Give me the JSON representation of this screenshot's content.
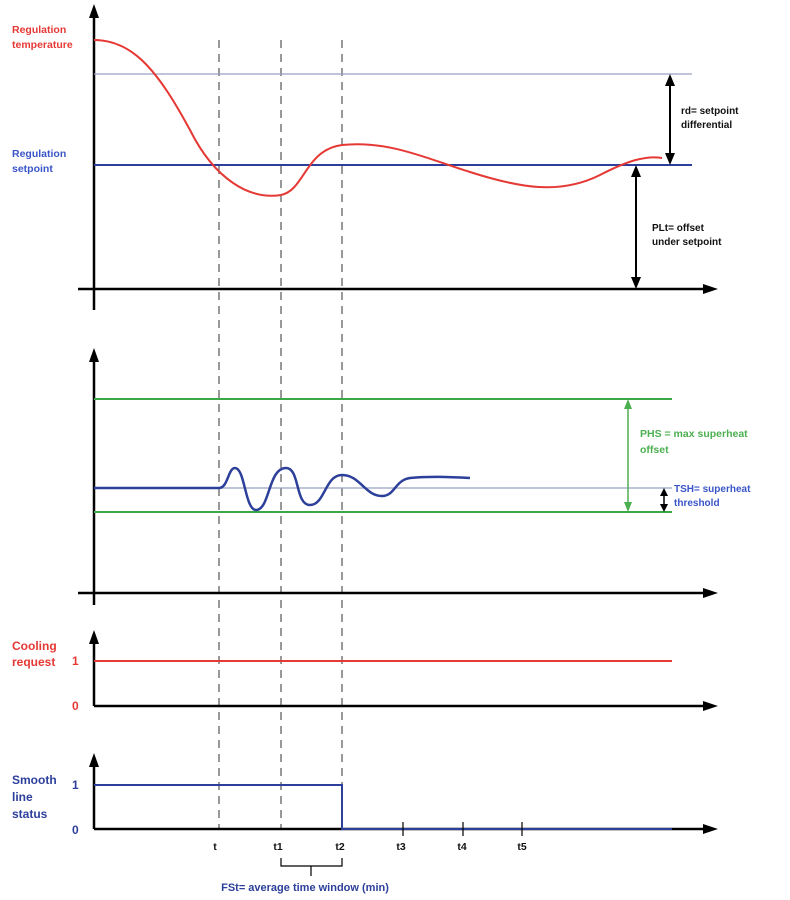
{
  "colors": {
    "axis": "#000000",
    "red": "#e53935",
    "blue": "#2c3f9a",
    "green": "#3aa844",
    "label_blue": "#3a55c8",
    "label_red": "#e53935",
    "label_green": "#4caf50",
    "thin_line": "#9aa0c0",
    "dash": "#555555"
  },
  "panel1": {
    "label_temperature": [
      "Regulation",
      "temperature"
    ],
    "label_setpoint": [
      "Regulation",
      "setpoint"
    ],
    "rd_label": [
      "rd= setpoint",
      "differential"
    ],
    "plt_label": [
      "PLt= offset",
      "under setpoint"
    ]
  },
  "panel2": {
    "phs_label": [
      "PHS = max superheat",
      "offset"
    ],
    "tsh_label": [
      "TSH= superheat",
      "threshold"
    ]
  },
  "panel3": {
    "label": [
      "Cooling",
      "request"
    ],
    "tick_one": "1",
    "tick_zero": "0"
  },
  "panel4": {
    "label": [
      "Smooth",
      "line",
      "status"
    ],
    "tick_one": "1",
    "tick_zero": "0"
  },
  "time_ticks": [
    "t",
    "t1",
    "t2",
    "t3",
    "t4",
    "t5"
  ],
  "fst_label": "FSt= average time window (min)"
}
